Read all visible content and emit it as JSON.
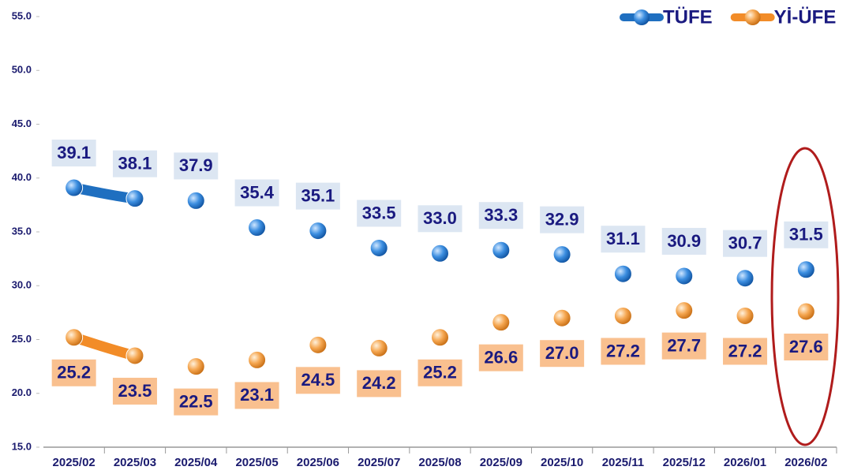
{
  "chart_data": {
    "type": "line",
    "categories": [
      "2025/02",
      "2025/03",
      "2025/04",
      "2025/05",
      "2025/06",
      "2025/07",
      "2025/08",
      "2025/09",
      "2025/10",
      "2025/11",
      "2025/12",
      "2026/01",
      "2026/02"
    ],
    "series": [
      {
        "name": "TÜFE",
        "color": "#1f6fc0",
        "label_box": "#dce6f2",
        "values": [
          39.1,
          38.1,
          37.9,
          35.4,
          35.1,
          33.5,
          33.0,
          33.3,
          32.9,
          31.1,
          30.9,
          30.7,
          31.5
        ],
        "value_labels": [
          "39.1",
          "38.1",
          "37.9",
          "35.4",
          "35.1",
          "33.5",
          "33.0",
          "33.3",
          "32.9",
          "31.1",
          "30.9",
          "30.7",
          "31.5"
        ]
      },
      {
        "name": "Yİ-ÜFE",
        "color": "#f28c28",
        "label_box": "#f9c08f",
        "values": [
          25.2,
          23.5,
          22.5,
          23.1,
          24.5,
          24.2,
          25.2,
          26.6,
          27.0,
          27.2,
          27.7,
          27.2,
          27.6
        ],
        "value_labels": [
          "25.2",
          "23.5",
          "22.5",
          "23.1",
          "24.5",
          "24.2",
          "25.2",
          "26.6",
          "27.0",
          "27.2",
          "27.7",
          "27.2",
          "27.6"
        ]
      }
    ],
    "ylim": [
      15,
      55
    ],
    "yticks": [
      {
        "value": 15,
        "label": "15.0"
      },
      {
        "value": 20,
        "label": "20.0"
      },
      {
        "value": 25,
        "label": "25.0"
      },
      {
        "value": 30,
        "label": "30.0"
      },
      {
        "value": 35,
        "label": "35.0"
      },
      {
        "value": 40,
        "label": "40.0"
      },
      {
        "value": 45,
        "label": "45.0"
      },
      {
        "value": 50,
        "label": "50.0"
      },
      {
        "value": 55,
        "label": "55.0"
      }
    ],
    "legend": "top-right",
    "grid": false
  }
}
